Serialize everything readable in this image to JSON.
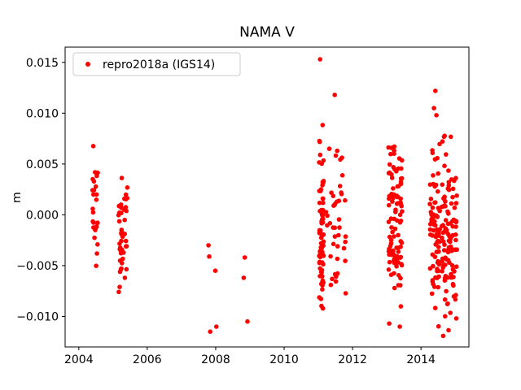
{
  "chart_data": {
    "type": "scatter",
    "title": "NAMA V",
    "xlabel": "",
    "ylabel": "m",
    "xlim": [
      2003.6,
      2015.4
    ],
    "ylim": [
      -0.013,
      0.0165
    ],
    "xticks": [
      2004,
      2006,
      2008,
      2010,
      2012,
      2014
    ],
    "xtick_labels": [
      "2004",
      "2006",
      "2008",
      "2010",
      "2012",
      "2014"
    ],
    "yticks": [
      0.015,
      0.01,
      0.005,
      0.0,
      -0.005,
      -0.01
    ],
    "ytick_labels": [
      "0.015",
      "0.010",
      "0.005",
      "0.000",
      "−0.005",
      "−0.010"
    ],
    "grid": false,
    "legend": {
      "position": "upper-left",
      "entries": [
        {
          "label": "repro2018a (IGS14)",
          "marker_color": "#ff0000"
        }
      ]
    },
    "marker": {
      "color": "#ff0000",
      "radius_px": 2.8
    },
    "series_name": "repro2018a (IGS14)",
    "seed": 42,
    "points": [
      [
        2007.79,
        -0.003
      ],
      [
        2007.81,
        -0.0041
      ],
      [
        2007.84,
        -0.0115
      ],
      [
        2007.99,
        -0.0055
      ],
      [
        2008.02,
        -0.011
      ],
      [
        2008.82,
        -0.0062
      ],
      [
        2008.85,
        -0.0042
      ],
      [
        2008.93,
        -0.0105
      ],
      [
        2011.05,
        0.0153
      ],
      [
        2011.48,
        0.0118
      ],
      [
        2011.32,
        0.0065
      ],
      [
        2011.55,
        0.0063
      ],
      [
        2013.07,
        -0.0107
      ],
      [
        2013.38,
        -0.011
      ],
      [
        2014.42,
        0.0122
      ],
      [
        2014.38,
        0.0105
      ],
      [
        2014.45,
        0.0098
      ]
    ],
    "clusters": [
      {
        "x_min": 2004.4,
        "x_max": 2004.56,
        "n": 26,
        "y_mean": 0.0005,
        "y_std": 0.003,
        "y_min": -0.0063,
        "y_max": 0.0082
      },
      {
        "x_min": 2005.15,
        "x_max": 2005.42,
        "n": 46,
        "y_mean": -0.001,
        "y_std": 0.0035,
        "y_min": -0.0095,
        "y_max": 0.0058
      },
      {
        "x_min": 2011.02,
        "x_max": 2011.16,
        "n": 75,
        "y_mean": -0.0018,
        "y_std": 0.0045,
        "y_min": -0.0115,
        "y_max": 0.009
      },
      {
        "x_min": 2011.22,
        "x_max": 2011.8,
        "n": 40,
        "y_mean": -0.0012,
        "y_std": 0.0042,
        "y_min": -0.0097,
        "y_max": 0.0085
      },
      {
        "x_min": 2013.05,
        "x_max": 2013.45,
        "n": 100,
        "y_mean": -0.0008,
        "y_std": 0.0038,
        "y_min": -0.0098,
        "y_max": 0.0083
      },
      {
        "x_min": 2014.25,
        "x_max": 2014.55,
        "n": 75,
        "y_mean": -0.0015,
        "y_std": 0.0045,
        "y_min": -0.011,
        "y_max": 0.011
      },
      {
        "x_min": 2014.6,
        "x_max": 2015.05,
        "n": 105,
        "y_mean": -0.0022,
        "y_std": 0.0045,
        "y_min": -0.012,
        "y_max": 0.009
      }
    ]
  }
}
